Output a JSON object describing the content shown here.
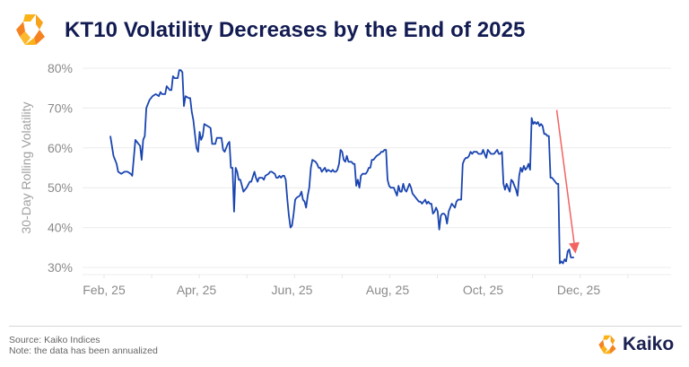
{
  "header": {
    "title": "KT10 Volatility Decreases by the End of 2025",
    "logo_icon": "kaiko-logo-icon"
  },
  "footer": {
    "source": "Source: Kaiko Indices",
    "note": "Note: the data has been annualized",
    "brand_name": "Kaiko",
    "brand_icon": "kaiko-logo-icon"
  },
  "colors": {
    "title": "#121b52",
    "line": "#1a45b0",
    "arrow": "#f26262",
    "logo_orange": "#f58220",
    "logo_yellow": "#fbb217",
    "grid": "#ececec"
  },
  "chart_data": {
    "type": "line",
    "title": "KT10 Volatility Decreases by the End of 2025",
    "xlabel": "",
    "ylabel": "30-Day Rolling Volatility",
    "y_ticks": [
      "30%",
      "40%",
      "50%",
      "60%",
      "70%",
      "80%"
    ],
    "y_tick_values": [
      30,
      40,
      50,
      60,
      70,
      80
    ],
    "ylim": [
      30,
      80
    ],
    "x_unit": "days since 2025-01-01",
    "x_ticks": [
      {
        "label": "Feb, 25",
        "day": 31
      },
      {
        "label": "Apr, 25",
        "day": 90
      },
      {
        "label": "Jun, 25",
        "day": 151
      },
      {
        "label": "Aug, 25",
        "day": 212
      },
      {
        "label": "Oct, 25",
        "day": 273
      },
      {
        "label": "Dec, 25",
        "day": 334
      }
    ],
    "xlim": [
      28,
      378
    ],
    "grid": true,
    "legend": "none",
    "series": [
      {
        "name": "KT10 30-Day Rolling Volatility",
        "points": [
          [
            35,
            63
          ],
          [
            37,
            58
          ],
          [
            38,
            57
          ],
          [
            39,
            56
          ],
          [
            40,
            54
          ],
          [
            42,
            53.5
          ],
          [
            44,
            54
          ],
          [
            46,
            54
          ],
          [
            48,
            53.5
          ],
          [
            49,
            53
          ],
          [
            51,
            62
          ],
          [
            53,
            61
          ],
          [
            54,
            60.5
          ],
          [
            55,
            57
          ],
          [
            56,
            62
          ],
          [
            57,
            63
          ],
          [
            58,
            70
          ],
          [
            60,
            72
          ],
          [
            62,
            73
          ],
          [
            64,
            73.5
          ],
          [
            66,
            73
          ],
          [
            67,
            74
          ],
          [
            68,
            73.5
          ],
          [
            70,
            73.5
          ],
          [
            71,
            75.5
          ],
          [
            73,
            74.5
          ],
          [
            74,
            74.5
          ],
          [
            75,
            78
          ],
          [
            76,
            77.5
          ],
          [
            78,
            77.5
          ],
          [
            79,
            79.5
          ],
          [
            80,
            79.5
          ],
          [
            81,
            79
          ],
          [
            82,
            70.5
          ],
          [
            83,
            73
          ],
          [
            85,
            72.5
          ],
          [
            86,
            72.5
          ],
          [
            87,
            69
          ],
          [
            88,
            67
          ],
          [
            90,
            60
          ],
          [
            91,
            59
          ],
          [
            92,
            64
          ],
          [
            93,
            62
          ],
          [
            94,
            63
          ],
          [
            95,
            66
          ],
          [
            97,
            65.5
          ],
          [
            99,
            65
          ],
          [
            100,
            61
          ],
          [
            102,
            61
          ],
          [
            103,
            62.5
          ],
          [
            105,
            62.5
          ],
          [
            106,
            62.5
          ],
          [
            107,
            59.5
          ],
          [
            108,
            59
          ],
          [
            110,
            61
          ],
          [
            111,
            61.5
          ],
          [
            112,
            55
          ],
          [
            113,
            55
          ],
          [
            114,
            44
          ],
          [
            115,
            55
          ],
          [
            116,
            54
          ],
          [
            117,
            52
          ],
          [
            118,
            52
          ],
          [
            120,
            49
          ],
          [
            121,
            49.5
          ],
          [
            122,
            50
          ],
          [
            124,
            51.5
          ],
          [
            125,
            51.5
          ],
          [
            127,
            54
          ],
          [
            128,
            52.5
          ],
          [
            129,
            51.5
          ],
          [
            130,
            52.5
          ],
          [
            132,
            52.5
          ],
          [
            133,
            52
          ],
          [
            134,
            53
          ],
          [
            136,
            53.5
          ],
          [
            137,
            54
          ],
          [
            138,
            54
          ],
          [
            140,
            53.5
          ],
          [
            141,
            52.5
          ],
          [
            142,
            52.5
          ],
          [
            143,
            53
          ],
          [
            144,
            52.5
          ],
          [
            145,
            53
          ],
          [
            146,
            53
          ],
          [
            147,
            52
          ],
          [
            148,
            47
          ],
          [
            149,
            43
          ],
          [
            150,
            40
          ],
          [
            151,
            40.5
          ],
          [
            152,
            43.5
          ],
          [
            153,
            47
          ],
          [
            154,
            47.5
          ],
          [
            156,
            48
          ],
          [
            157,
            49
          ],
          [
            158,
            47
          ],
          [
            159,
            46.5
          ],
          [
            160,
            45
          ],
          [
            161,
            48
          ],
          [
            162,
            50
          ],
          [
            163,
            55
          ],
          [
            164,
            57
          ],
          [
            166,
            56.5
          ],
          [
            167,
            56
          ],
          [
            168,
            55
          ],
          [
            169,
            55
          ],
          [
            170,
            54
          ],
          [
            171,
            54.5
          ],
          [
            172,
            55
          ],
          [
            173,
            54
          ],
          [
            174,
            54.5
          ],
          [
            176,
            54
          ],
          [
            177,
            54.5
          ],
          [
            178,
            54
          ],
          [
            179,
            54
          ],
          [
            180,
            54.5
          ],
          [
            181,
            56
          ],
          [
            182,
            59.5
          ],
          [
            183,
            59
          ],
          [
            184,
            57
          ],
          [
            185,
            56.5
          ],
          [
            186,
            58
          ],
          [
            187,
            56.5
          ],
          [
            189,
            56.5
          ],
          [
            190,
            56
          ],
          [
            191,
            56
          ],
          [
            192,
            50.5
          ],
          [
            193,
            52
          ],
          [
            194,
            50
          ],
          [
            195,
            53
          ],
          [
            196,
            53.5
          ],
          [
            198,
            53.5
          ],
          [
            199,
            54
          ],
          [
            200,
            55
          ],
          [
            201,
            55
          ],
          [
            202,
            57
          ],
          [
            203,
            57
          ],
          [
            205,
            58
          ],
          [
            207,
            58.5
          ],
          [
            208,
            59
          ],
          [
            209,
            59
          ],
          [
            210,
            59.5
          ],
          [
            211,
            59.5
          ],
          [
            212,
            52
          ],
          [
            213,
            50.5
          ],
          [
            214,
            50
          ],
          [
            216,
            50
          ],
          [
            217,
            49
          ],
          [
            218,
            48
          ],
          [
            219,
            50.5
          ],
          [
            220,
            49
          ],
          [
            221,
            49
          ],
          [
            222,
            51
          ],
          [
            223,
            49.5
          ],
          [
            224,
            49
          ],
          [
            225,
            50
          ],
          [
            226,
            51
          ],
          [
            227,
            50
          ],
          [
            228,
            48.5
          ],
          [
            229,
            48
          ],
          [
            230,
            47.5
          ],
          [
            232,
            46.5
          ],
          [
            233,
            46.5
          ],
          [
            234,
            46
          ],
          [
            236,
            47
          ],
          [
            237,
            46
          ],
          [
            238,
            46.5
          ],
          [
            239,
            46
          ],
          [
            240,
            46
          ],
          [
            241,
            43.5
          ],
          [
            242,
            44
          ],
          [
            243,
            45
          ],
          [
            244,
            44
          ],
          [
            245,
            39.5
          ],
          [
            246,
            43
          ],
          [
            247,
            43.5
          ],
          [
            248,
            43.5
          ],
          [
            249,
            43
          ],
          [
            250,
            41
          ],
          [
            251,
            44
          ],
          [
            252,
            45
          ],
          [
            253,
            46
          ],
          [
            254,
            45.5
          ],
          [
            255,
            45
          ],
          [
            256,
            46.5
          ],
          [
            257,
            47
          ],
          [
            258,
            47
          ],
          [
            259,
            47
          ],
          [
            260,
            56
          ],
          [
            261,
            57
          ],
          [
            262,
            57.5
          ],
          [
            263,
            57.5
          ],
          [
            264,
            58
          ],
          [
            265,
            59
          ],
          [
            266,
            58.5
          ],
          [
            267,
            59
          ],
          [
            268,
            59
          ],
          [
            269,
            59
          ],
          [
            270,
            58.5
          ],
          [
            271,
            58.5
          ],
          [
            272,
            58.5
          ],
          [
            273,
            59.5
          ],
          [
            274,
            58.5
          ],
          [
            275,
            57.5
          ],
          [
            276,
            59.5
          ],
          [
            277,
            59
          ],
          [
            278,
            58.5
          ],
          [
            279,
            58.5
          ],
          [
            280,
            58.5
          ],
          [
            281,
            59
          ],
          [
            282,
            59.5
          ],
          [
            283,
            58.5
          ],
          [
            284,
            58.5
          ],
          [
            285,
            59
          ],
          [
            286,
            51
          ],
          [
            287,
            49.5
          ],
          [
            288,
            51
          ],
          [
            289,
            50
          ],
          [
            290,
            49
          ],
          [
            291,
            52
          ],
          [
            292,
            51.5
          ],
          [
            293,
            50.5
          ],
          [
            294,
            49.5
          ],
          [
            295,
            48
          ],
          [
            296,
            53
          ],
          [
            297,
            55
          ],
          [
            298,
            54
          ],
          [
            299,
            55.5
          ],
          [
            300,
            54.5
          ],
          [
            301,
            55
          ],
          [
            302,
            56
          ],
          [
            303,
            54.5
          ],
          [
            304,
            67.5
          ],
          [
            305,
            66
          ],
          [
            306,
            66.5
          ],
          [
            307,
            66
          ],
          [
            308,
            66.5
          ],
          [
            309,
            65.5
          ],
          [
            310,
            66
          ],
          [
            311,
            65.5
          ],
          [
            312,
            63.5
          ],
          [
            313,
            63.5
          ],
          [
            314,
            63
          ],
          [
            315,
            63
          ],
          [
            316,
            52.5
          ],
          [
            317,
            52.5
          ],
          [
            318,
            52
          ],
          [
            319,
            51.5
          ],
          [
            320,
            51
          ],
          [
            321,
            51
          ],
          [
            322,
            31
          ],
          [
            323,
            31.5
          ],
          [
            324,
            31
          ],
          [
            325,
            32
          ],
          [
            326,
            31.5
          ],
          [
            327,
            34
          ],
          [
            328,
            34.5
          ],
          [
            329,
            32.5
          ],
          [
            330,
            32.5
          ],
          [
            331,
            32.5
          ]
        ]
      }
    ],
    "annotations": [
      {
        "type": "arrow",
        "description": "downward trend arrow",
        "from": [
          320,
          69.5
        ],
        "to": [
          332,
          33.5
        ],
        "color": "#f26262"
      }
    ]
  }
}
